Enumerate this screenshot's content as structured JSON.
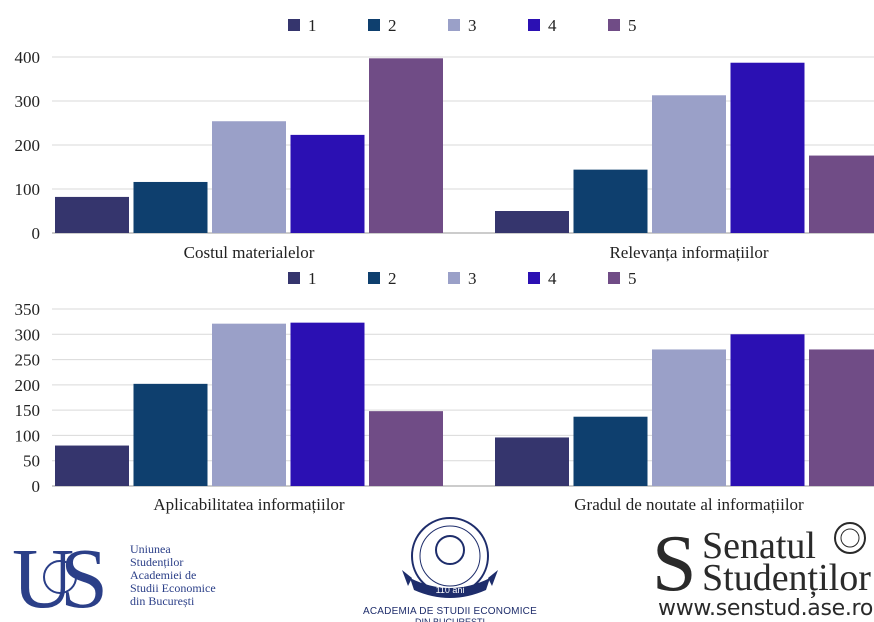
{
  "chart_data": [
    {
      "type": "bar",
      "categories": [
        "Costul materialelor",
        "Relevanța informațiilor"
      ],
      "series": [
        {
          "name": "1",
          "values": [
            82,
            50
          ]
        },
        {
          "name": "2",
          "values": [
            116,
            144
          ]
        },
        {
          "name": "3",
          "values": [
            254,
            313
          ]
        },
        {
          "name": "4",
          "values": [
            223,
            387
          ]
        },
        {
          "name": "5",
          "values": [
            397,
            176
          ]
        }
      ],
      "ylim": [
        0,
        400
      ],
      "yticks": [
        0,
        100,
        200,
        300,
        400
      ],
      "grid": true,
      "legend": "top-center"
    },
    {
      "type": "bar",
      "categories": [
        "Aplicabilitatea informațiilor",
        "Gradul de noutate al informațiilor"
      ],
      "series": [
        {
          "name": "1",
          "values": [
            80,
            96
          ]
        },
        {
          "name": "2",
          "values": [
            202,
            137
          ]
        },
        {
          "name": "3",
          "values": [
            321,
            270
          ]
        },
        {
          "name": "4",
          "values": [
            323,
            300
          ]
        },
        {
          "name": "5",
          "values": [
            148,
            270
          ]
        }
      ],
      "ylim": [
        0,
        350
      ],
      "yticks": [
        0,
        50,
        100,
        150,
        200,
        250,
        300,
        350
      ],
      "grid": true,
      "legend": "top-center"
    }
  ],
  "colors": [
    "#35356d",
    "#0e3f6e",
    "#9aa0c8",
    "#2b10b3",
    "#704c86"
  ],
  "logos": {
    "us": {
      "monogram": "US",
      "lines": [
        "Uniunea",
        "Studenților",
        "Academiei de Studii Economice",
        "din București"
      ]
    },
    "ase": {
      "anniversary": "110 ani",
      "caption": "ACADEMIA DE STUDII ECONOMICE",
      "caption2": "DIN BUCUREȘTI"
    },
    "senat": {
      "line1": "Senatul",
      "line2": "Studenților",
      "url": "www.senstud.ase.ro"
    }
  }
}
